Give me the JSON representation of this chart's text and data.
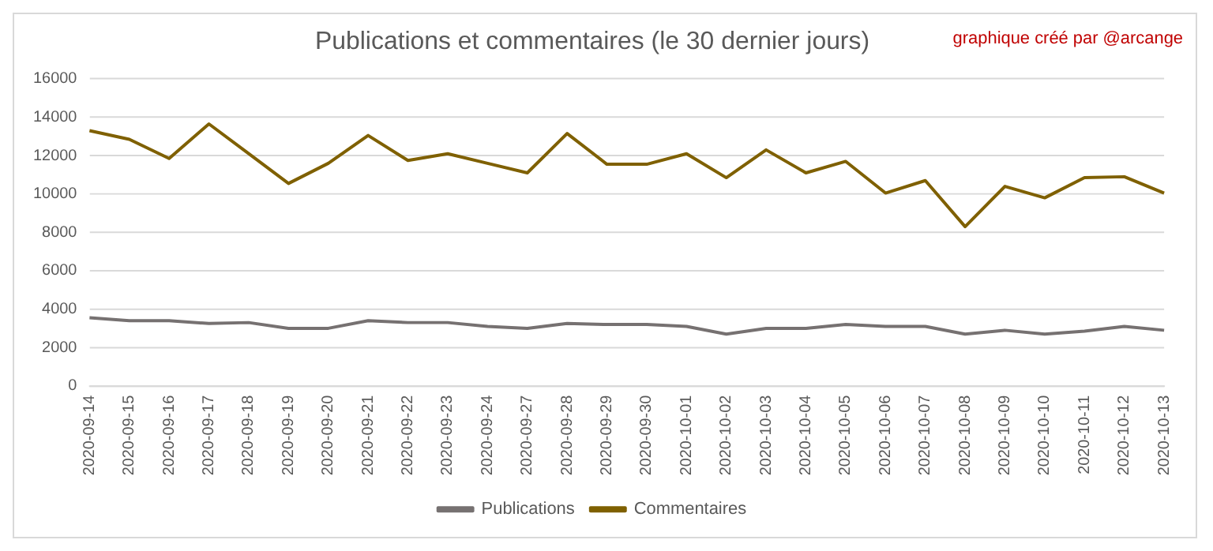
{
  "chart_data": {
    "type": "line",
    "title": "Publications et commentaires (le 30 dernier jours)",
    "annotations": [
      "graphique créé par @arcange"
    ],
    "categories": [
      "2020-09-14",
      "2020-09-15",
      "2020-09-16",
      "2020-09-17",
      "2020-09-18",
      "2020-09-19",
      "2020-09-20",
      "2020-09-21",
      "2020-09-22",
      "2020-09-23",
      "2020-09-24",
      "2020-09-27",
      "2020-09-28",
      "2020-09-29",
      "2020-09-30",
      "2020-10-01",
      "2020-10-02",
      "2020-10-03",
      "2020-10-04",
      "2020-10-05",
      "2020-10-06",
      "2020-10-07",
      "2020-10-08",
      "2020-10-09",
      "2020-10-10",
      "2020-10-11",
      "2020-10-12",
      "2020-10-13"
    ],
    "series": [
      {
        "name": "Publications",
        "color": "#767171",
        "values": [
          3550,
          3400,
          3400,
          3250,
          3300,
          3000,
          3000,
          3400,
          3300,
          3300,
          3100,
          3000,
          3250,
          3200,
          3200,
          3100,
          2700,
          3000,
          3000,
          3200,
          3100,
          3100,
          2700,
          2900,
          2700,
          2850,
          3100,
          2900
        ]
      },
      {
        "name": "Commentaires",
        "color": "#7f6000",
        "values": [
          13300,
          12850,
          11850,
          13650,
          12100,
          10550,
          11600,
          13050,
          11750,
          12100,
          11600,
          11100,
          13150,
          11550,
          11550,
          12100,
          10850,
          12300,
          11100,
          11700,
          10050,
          10700,
          8300,
          10400,
          9800,
          10850,
          10900,
          10050
        ]
      }
    ],
    "ylim": [
      0,
      16000
    ],
    "yticks": [
      0,
      2000,
      4000,
      6000,
      8000,
      10000,
      12000,
      14000,
      16000
    ],
    "grid": "y",
    "legend": "bottom",
    "marker": "none",
    "line_style": "solid"
  }
}
